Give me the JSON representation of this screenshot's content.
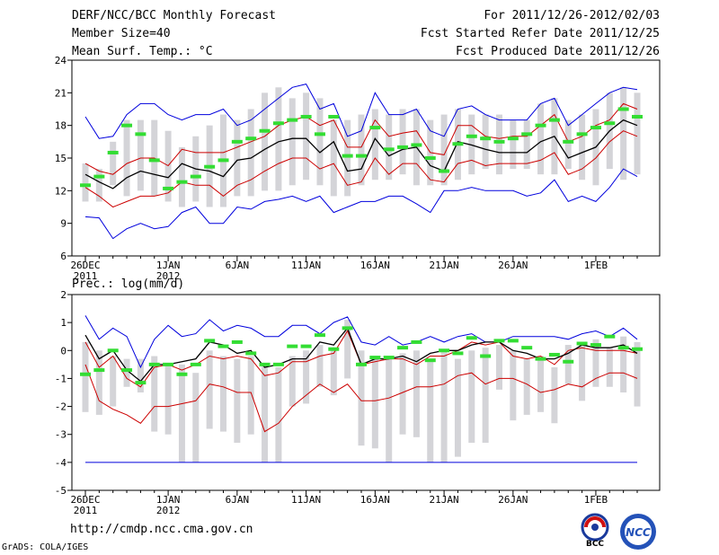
{
  "header": {
    "title": "DERF/NCC/BCC Monthly Forecast",
    "member": "Member Size=40",
    "variable": "Mean Surf. Temp.: °C",
    "period": "For 2011/12/26-2012/02/03",
    "started": "Fcst Started Refer Date 2011/12/25",
    "produced": "Fcst Produced Date 2011/12/26"
  },
  "footer": {
    "url": "http://cmdp.ncc.cma.gov.cn",
    "credit": "GrADS: COLA/IGES"
  },
  "logos": {
    "bcc": "BCC",
    "ncc": "NCC"
  },
  "colors": {
    "max_min": "#0000dd",
    "spread": "#cc0000",
    "mean": "#000000",
    "box": "#d4d4d8",
    "obs": "#33dd33"
  },
  "x_labels": [
    {
      "day": 0,
      "l1": "26DEC",
      "l2": "2011"
    },
    {
      "day": 6,
      "l1": "1JAN",
      "l2": "2012"
    },
    {
      "day": 11,
      "l1": "6JAN",
      "l2": ""
    },
    {
      "day": 16,
      "l1": "11JAN",
      "l2": ""
    },
    {
      "day": 21,
      "l1": "16JAN",
      "l2": ""
    },
    {
      "day": 26,
      "l1": "21JAN",
      "l2": ""
    },
    {
      "day": 31,
      "l1": "26JAN",
      "l2": ""
    },
    {
      "day": 37,
      "l1": "1FEB",
      "l2": ""
    }
  ],
  "chart_data": [
    {
      "type": "line",
      "title": "Mean Surf. Temp.: °C",
      "ylim": [
        6,
        24
      ],
      "yticks": [
        6,
        9,
        12,
        15,
        18,
        21,
        24
      ],
      "days": 40,
      "series": [
        {
          "name": "max",
          "color": "#0000dd",
          "values": [
            18.8,
            16.8,
            17.0,
            19.0,
            20.0,
            20.0,
            19.0,
            18.5,
            19.0,
            19.0,
            19.5,
            18.0,
            18.5,
            19.5,
            20.5,
            21.5,
            21.8,
            19.5,
            20.0,
            17.0,
            17.5,
            21.0,
            19.0,
            19.0,
            19.5,
            17.5,
            17.0,
            19.5,
            19.8,
            19.0,
            18.5,
            18.5,
            18.5,
            20.0,
            20.5,
            18.0,
            19.0,
            20.0,
            21.0,
            21.5,
            21.3
          ]
        },
        {
          "name": "upper",
          "color": "#cc0000",
          "values": [
            14.5,
            13.8,
            13.5,
            14.5,
            15.0,
            15.0,
            14.3,
            15.8,
            15.5,
            15.5,
            15.5,
            16.0,
            16.5,
            17.0,
            18.0,
            18.5,
            18.8,
            18.0,
            18.5,
            16.0,
            16.0,
            18.5,
            17.0,
            17.3,
            17.5,
            15.5,
            15.3,
            18.0,
            18.0,
            17.0,
            16.8,
            17.0,
            17.0,
            18.0,
            19.0,
            16.5,
            17.0,
            18.0,
            18.5,
            20.0,
            19.5
          ]
        },
        {
          "name": "mean",
          "color": "#000000",
          "values": [
            13.5,
            12.8,
            12.2,
            13.2,
            13.8,
            13.5,
            13.2,
            14.5,
            14.0,
            13.8,
            13.3,
            14.8,
            15.0,
            15.8,
            16.5,
            16.8,
            16.8,
            15.5,
            16.5,
            13.8,
            14.0,
            16.8,
            15.2,
            15.8,
            16.0,
            14.3,
            13.8,
            16.5,
            16.2,
            15.8,
            15.5,
            15.5,
            15.5,
            16.5,
            17.0,
            15.0,
            15.5,
            16.0,
            17.5,
            18.5,
            18.0
          ]
        },
        {
          "name": "lower",
          "color": "#cc0000",
          "values": [
            12.3,
            11.5,
            10.5,
            11.0,
            11.5,
            11.5,
            11.8,
            12.8,
            12.5,
            12.5,
            11.5,
            12.5,
            13.0,
            13.8,
            14.5,
            15.0,
            15.0,
            14.0,
            14.5,
            12.5,
            12.8,
            15.0,
            13.5,
            14.5,
            14.5,
            13.0,
            12.8,
            14.5,
            14.8,
            14.3,
            14.5,
            14.5,
            14.5,
            14.8,
            15.5,
            13.5,
            14.0,
            15.0,
            16.5,
            17.5,
            17.0
          ]
        },
        {
          "name": "min",
          "color": "#0000dd",
          "values": [
            9.6,
            9.5,
            7.6,
            8.5,
            9.0,
            8.5,
            8.7,
            10.0,
            10.5,
            9.0,
            9.0,
            10.5,
            10.3,
            11.0,
            11.2,
            11.5,
            11.0,
            11.5,
            10.0,
            10.5,
            11.0,
            11.0,
            11.5,
            11.5,
            10.8,
            10.0,
            12.0,
            12.0,
            12.3,
            12.0,
            12.0,
            12.0,
            11.5,
            11.8,
            13.0,
            11.0,
            11.5,
            11.0,
            12.3,
            14.0,
            13.3
          ]
        }
      ],
      "boxes": [
        [
          11.0,
          14.5
        ],
        [
          11.0,
          14.0
        ],
        [
          12.5,
          16.5
        ],
        [
          11.5,
          18.5
        ],
        [
          12.0,
          18.5
        ],
        [
          11.5,
          18.5
        ],
        [
          11.0,
          17.5
        ],
        [
          10.5,
          16.0
        ],
        [
          11.0,
          17.0
        ],
        [
          10.5,
          18.0
        ],
        [
          10.5,
          19.0
        ],
        [
          11.5,
          18.5
        ],
        [
          11.5,
          19.5
        ],
        [
          12.0,
          21.0
        ],
        [
          12.0,
          21.5
        ],
        [
          12.5,
          20.5
        ],
        [
          13.0,
          21.0
        ],
        [
          12.5,
          20.5
        ],
        [
          11.5,
          18.5
        ],
        [
          11.5,
          18.5
        ],
        [
          12.5,
          19.0
        ],
        [
          13.0,
          19.5
        ],
        [
          13.0,
          19.0
        ],
        [
          13.5,
          19.5
        ],
        [
          12.5,
          19.5
        ],
        [
          12.5,
          18.5
        ],
        [
          12.5,
          19.0
        ],
        [
          13.0,
          19.5
        ],
        [
          13.5,
          19.0
        ],
        [
          14.0,
          19.0
        ],
        [
          13.5,
          19.0
        ],
        [
          14.0,
          18.5
        ],
        [
          14.0,
          18.5
        ],
        [
          13.5,
          20.0
        ],
        [
          13.5,
          20.5
        ],
        [
          14.0,
          18.5
        ],
        [
          13.0,
          19.0
        ],
        [
          12.5,
          19.5
        ],
        [
          14.0,
          21.0
        ],
        [
          13.0,
          21.5
        ],
        [
          13.5,
          21.0
        ]
      ],
      "obs": [
        12.5,
        13.3,
        15.5,
        18.0,
        17.2,
        14.8,
        12.2,
        12.8,
        13.3,
        14.2,
        14.8,
        16.5,
        16.8,
        17.5,
        18.2,
        18.5,
        18.8,
        17.2,
        18.8,
        15.2,
        15.2,
        17.8,
        15.8,
        16.0,
        16.2,
        15.0,
        13.8,
        16.3,
        17.0,
        16.8,
        16.5,
        16.8,
        17.2,
        18.0,
        18.5,
        16.5,
        17.2,
        17.8,
        18.2,
        19.5,
        18.8
      ]
    },
    {
      "type": "line",
      "title": "Prec.: log(mm/d)",
      "ylim": [
        -5,
        2
      ],
      "yticks": [
        -5,
        -4,
        -3,
        -2,
        -1,
        0,
        1,
        2
      ],
      "days": 40,
      "series": [
        {
          "name": "max",
          "color": "#0000dd",
          "values": [
            1.25,
            0.4,
            0.8,
            0.5,
            -0.6,
            0.4,
            0.9,
            0.5,
            0.6,
            1.1,
            0.7,
            0.9,
            0.8,
            0.5,
            0.5,
            0.9,
            0.9,
            0.6,
            1.0,
            1.2,
            0.3,
            0.2,
            0.5,
            0.2,
            0.3,
            0.5,
            0.3,
            0.5,
            0.6,
            0.3,
            0.3,
            0.5,
            0.5,
            0.5,
            0.5,
            0.4,
            0.6,
            0.7,
            0.5,
            0.8,
            0.4
          ]
        },
        {
          "name": "upper",
          "color": "#cc0000",
          "values": [
            0.3,
            -0.6,
            -0.2,
            -1.0,
            -1.3,
            -0.6,
            -0.5,
            -0.7,
            -0.5,
            -0.2,
            -0.3,
            -0.2,
            -0.3,
            -0.9,
            -0.8,
            -0.4,
            -0.4,
            -0.2,
            -0.1,
            0.7,
            -0.5,
            -0.4,
            -0.3,
            -0.3,
            -0.5,
            -0.2,
            -0.2,
            0.0,
            0.3,
            0.2,
            0.3,
            -0.2,
            -0.3,
            -0.2,
            -0.5,
            0.0,
            0.1,
            0.0,
            0.0,
            0.0,
            -0.1
          ]
        },
        {
          "name": "mean",
          "color": "#000000",
          "values": [
            0.55,
            -0.3,
            0.0,
            -0.7,
            -1.1,
            -0.5,
            -0.5,
            -0.4,
            -0.3,
            0.3,
            0.2,
            -0.1,
            0.0,
            -0.6,
            -0.5,
            -0.3,
            -0.3,
            0.3,
            0.2,
            0.8,
            -0.5,
            -0.3,
            -0.3,
            -0.2,
            -0.4,
            -0.1,
            0.0,
            0.0,
            0.2,
            0.3,
            0.3,
            0.0,
            -0.1,
            -0.3,
            -0.3,
            -0.1,
            0.2,
            0.1,
            0.1,
            0.2,
            -0.1
          ]
        },
        {
          "name": "lower",
          "color": "#cc0000",
          "values": [
            -0.5,
            -1.8,
            -2.1,
            -2.3,
            -2.6,
            -2.0,
            -2.0,
            -1.9,
            -1.8,
            -1.2,
            -1.3,
            -1.5,
            -1.5,
            -2.9,
            -2.6,
            -2.0,
            -1.6,
            -1.2,
            -1.5,
            -1.2,
            -1.8,
            -1.8,
            -1.7,
            -1.5,
            -1.3,
            -1.3,
            -1.2,
            -0.9,
            -0.8,
            -1.2,
            -1.0,
            -1.0,
            -1.2,
            -1.5,
            -1.4,
            -1.2,
            -1.3,
            -1.0,
            -0.8,
            -0.8,
            -1.0
          ]
        },
        {
          "name": "min",
          "color": "#0000dd",
          "values": [
            -4.0,
            -4.0,
            -4.0,
            -4.0,
            -4.0,
            -4.0,
            -4.0,
            -4.0,
            -4.0,
            -4.0,
            -4.0,
            -4.0,
            -4.0,
            -4.0,
            -4.0,
            -4.0,
            -4.0,
            -4.0,
            -4.0,
            -4.0,
            -4.0,
            -4.0,
            -4.0,
            -4.0,
            -4.0,
            -4.0,
            -4.0,
            -4.0,
            -4.0,
            -4.0,
            -4.0,
            -4.0,
            -4.0,
            -4.0,
            -4.0,
            -4.0,
            -4.0,
            -4.0,
            -4.0,
            -4.0,
            -4.0
          ]
        }
      ],
      "boxes": [
        [
          -2.2,
          0.3
        ],
        [
          -2.3,
          0.0
        ],
        [
          -2.0,
          -0.2
        ],
        [
          -1.3,
          -0.3
        ],
        [
          -1.5,
          -0.3
        ],
        [
          -2.9,
          -0.2
        ],
        [
          -3.0,
          -0.5
        ],
        [
          -4.0,
          -0.5
        ],
        [
          -4.0,
          -0.8
        ],
        [
          -2.8,
          0.0
        ],
        [
          -2.9,
          -0.2
        ],
        [
          -3.3,
          -0.3
        ],
        [
          -3.0,
          -0.2
        ],
        [
          -4.0,
          -0.5
        ],
        [
          -4.0,
          -0.6
        ],
        [
          -2.0,
          -0.2
        ],
        [
          -1.9,
          0.0
        ],
        [
          -1.3,
          0.2
        ],
        [
          -1.6,
          0.1
        ],
        [
          -1.0,
          1.1
        ],
        [
          -3.4,
          0.0
        ],
        [
          -3.5,
          -0.2
        ],
        [
          -4.0,
          -0.3
        ],
        [
          -3.0,
          -0.1
        ],
        [
          -3.1,
          0.0
        ],
        [
          -4.0,
          -0.4
        ],
        [
          -4.0,
          0.0
        ],
        [
          -3.8,
          -0.3
        ],
        [
          -3.3,
          0.0
        ],
        [
          -3.3,
          0.1
        ],
        [
          -1.4,
          0.2
        ],
        [
          -2.5,
          0.0
        ],
        [
          -2.3,
          -0.3
        ],
        [
          -2.2,
          -0.2
        ],
        [
          -2.6,
          -0.6
        ],
        [
          -1.2,
          0.2
        ],
        [
          -1.8,
          0.2
        ],
        [
          -1.3,
          0.4
        ],
        [
          -1.3,
          0.1
        ],
        [
          -1.5,
          0.5
        ],
        [
          -2.0,
          0.3
        ]
      ],
      "obs": [
        -0.85,
        -0.7,
        0.0,
        -0.7,
        -1.15,
        -0.5,
        -0.5,
        -0.85,
        -0.5,
        0.35,
        0.15,
        0.3,
        -0.1,
        -0.5,
        -0.5,
        0.15,
        0.15,
        0.55,
        0.05,
        0.8,
        -0.5,
        -0.25,
        -0.25,
        0.1,
        0.3,
        -0.35,
        0.0,
        -0.1,
        0.45,
        -0.2,
        0.35,
        0.35,
        0.1,
        -0.3,
        -0.15,
        -0.4,
        0.25,
        0.2,
        0.5,
        0.1,
        0.05
      ]
    }
  ]
}
